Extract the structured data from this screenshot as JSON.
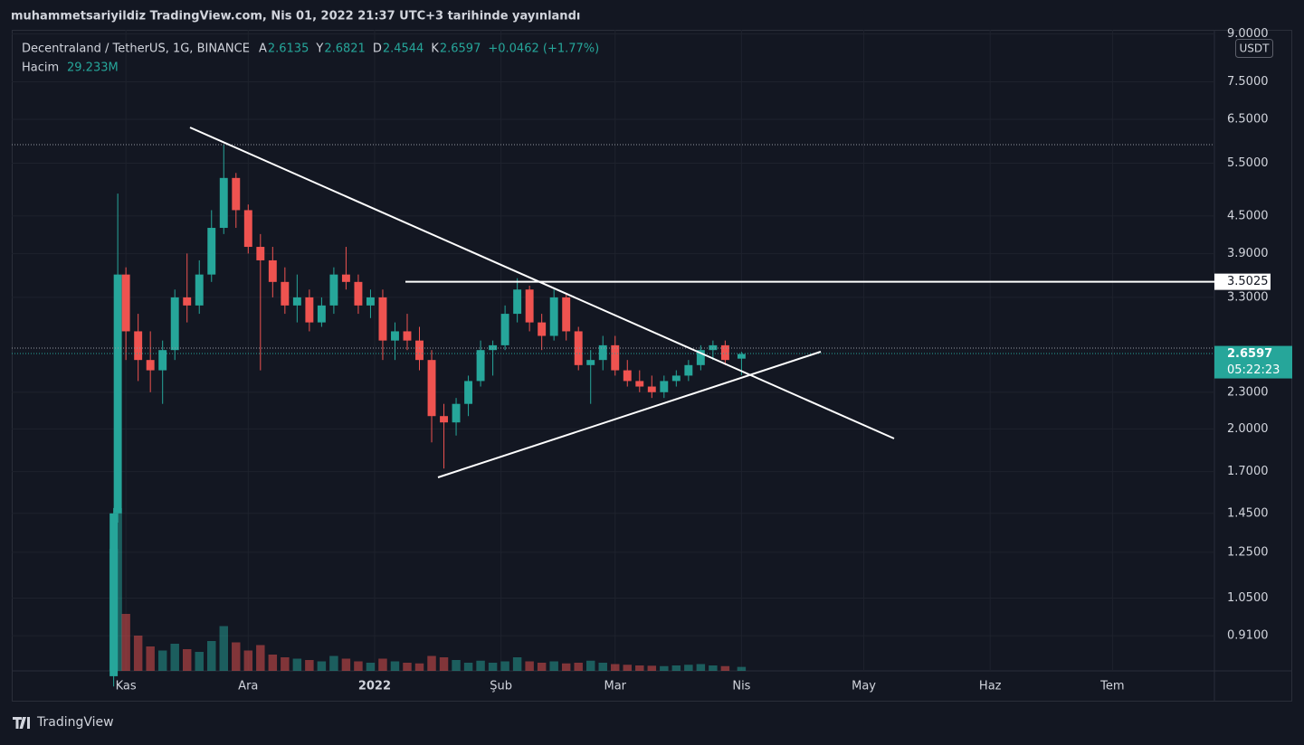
{
  "chart_data": {
    "type": "candlestick",
    "published": "muhammetsariyildiz TradingView.com, Nis 01, 2022 21:37 UTC+3 tarihinde yayınlandı",
    "title": "Decentraland / TetherUS, 1G, BINANCE",
    "readout": {
      "labels": [
        "A",
        "Y",
        "D",
        "K"
      ],
      "values": [
        2.6135,
        2.6821,
        2.4544,
        2.6597
      ],
      "change": "+0.0462 (+1.77%)"
    },
    "volume_readout": {
      "label": "Hacim",
      "value": 29.233,
      "value_label": "29.233M"
    },
    "currency": "USDT",
    "brand": "TradingView",
    "log_scale": true,
    "grid": true,
    "up_color": "#26a69a",
    "down_color": "#ef5350",
    "xlim": [
      -28,
      267
    ],
    "xticks": [
      {
        "value": 0,
        "label": "Kas"
      },
      {
        "value": 30,
        "label": "Ara"
      },
      {
        "value": 61,
        "label": "2022"
      },
      {
        "value": 92,
        "label": "Şub"
      },
      {
        "value": 120,
        "label": "Mar"
      },
      {
        "value": 151,
        "label": "Nis"
      },
      {
        "value": 181,
        "label": "May"
      },
      {
        "value": 212,
        "label": "Haz"
      },
      {
        "value": 242,
        "label": "Tem"
      }
    ],
    "ylim": [
      0.796,
      9.14
    ],
    "yticks": [
      {
        "value": 0.91,
        "label": "0.9100"
      },
      {
        "value": 1.05,
        "label": "1.0500"
      },
      {
        "value": 1.25,
        "label": "1.2500"
      },
      {
        "value": 1.45,
        "label": "1.4500"
      },
      {
        "value": 1.7,
        "label": "1.7000"
      },
      {
        "value": 2,
        "label": "2.0000"
      },
      {
        "value": 2.3,
        "label": "2.3000"
      },
      {
        "value": 3.3,
        "label": "3.3000"
      },
      {
        "value": 3.9,
        "label": "3.9000"
      },
      {
        "value": 4.5,
        "label": "4.5000"
      },
      {
        "value": 5.5,
        "label": "5.5000"
      },
      {
        "value": 6.5,
        "label": "6.5000"
      },
      {
        "value": 7.5,
        "label": "7.5000"
      },
      {
        "value": 9,
        "label": "9.0000"
      }
    ],
    "hline": 3.5025,
    "last_price": 2.6597,
    "countdown": "05:22:23",
    "volume_ylim": [
      0,
      1300
    ],
    "x": [
      -3,
      -2,
      0,
      3,
      6,
      9,
      12,
      15,
      18,
      21,
      24,
      27,
      30,
      33,
      36,
      39,
      42,
      45,
      48,
      51,
      54,
      57,
      60,
      63,
      66,
      69,
      72,
      75,
      78,
      81,
      84,
      87,
      90,
      93,
      96,
      99,
      102,
      105,
      108,
      111,
      114,
      117,
      120,
      123,
      126,
      129,
      132,
      135,
      138,
      141,
      144,
      147,
      151
    ],
    "ohlc": [
      [
        0.78,
        1.48,
        0.75,
        1.45
      ],
      [
        1.45,
        4.9,
        1.4,
        3.6
      ],
      [
        3.6,
        3.7,
        2.6,
        2.9
      ],
      [
        2.9,
        3.1,
        2.4,
        2.6
      ],
      [
        2.6,
        2.9,
        2.3,
        2.5
      ],
      [
        2.5,
        2.8,
        2.2,
        2.7
      ],
      [
        2.7,
        3.4,
        2.6,
        3.3
      ],
      [
        3.3,
        3.9,
        3.0,
        3.2
      ],
      [
        3.2,
        3.8,
        3.1,
        3.6
      ],
      [
        3.6,
        4.6,
        3.5,
        4.3
      ],
      [
        4.3,
        5.9,
        4.2,
        5.2
      ],
      [
        5.2,
        5.3,
        4.3,
        4.6
      ],
      [
        4.6,
        4.7,
        3.9,
        4.0
      ],
      [
        4.0,
        4.2,
        2.5,
        3.8
      ],
      [
        3.8,
        4.0,
        3.3,
        3.5
      ],
      [
        3.5,
        3.7,
        3.1,
        3.2
      ],
      [
        3.2,
        3.6,
        3.0,
        3.3
      ],
      [
        3.3,
        3.4,
        2.9,
        3.0
      ],
      [
        3.0,
        3.3,
        2.95,
        3.2
      ],
      [
        3.2,
        3.7,
        3.1,
        3.6
      ],
      [
        3.6,
        4.0,
        3.4,
        3.5
      ],
      [
        3.5,
        3.6,
        3.1,
        3.2
      ],
      [
        3.2,
        3.4,
        3.05,
        3.3
      ],
      [
        3.3,
        3.4,
        2.6,
        2.8
      ],
      [
        2.8,
        3.0,
        2.6,
        2.9
      ],
      [
        2.9,
        3.1,
        2.7,
        2.8
      ],
      [
        2.8,
        2.95,
        2.5,
        2.6
      ],
      [
        2.6,
        2.7,
        1.9,
        2.1
      ],
      [
        2.1,
        2.2,
        1.72,
        2.05
      ],
      [
        2.05,
        2.25,
        1.95,
        2.2
      ],
      [
        2.2,
        2.45,
        2.1,
        2.4
      ],
      [
        2.4,
        2.8,
        2.35,
        2.7
      ],
      [
        2.7,
        2.8,
        2.45,
        2.75
      ],
      [
        2.75,
        3.2,
        2.7,
        3.1
      ],
      [
        3.1,
        3.55,
        3.0,
        3.4
      ],
      [
        3.4,
        3.45,
        2.9,
        3.0
      ],
      [
        3.0,
        3.1,
        2.7,
        2.85
      ],
      [
        2.85,
        3.4,
        2.8,
        3.3
      ],
      [
        3.3,
        3.35,
        2.8,
        2.9
      ],
      [
        2.9,
        2.95,
        2.5,
        2.55
      ],
      [
        2.55,
        2.7,
        2.2,
        2.6
      ],
      [
        2.6,
        2.85,
        2.5,
        2.75
      ],
      [
        2.75,
        2.85,
        2.45,
        2.5
      ],
      [
        2.5,
        2.6,
        2.35,
        2.4
      ],
      [
        2.4,
        2.5,
        2.3,
        2.35
      ],
      [
        2.35,
        2.45,
        2.25,
        2.3
      ],
      [
        2.3,
        2.45,
        2.25,
        2.4
      ],
      [
        2.4,
        2.5,
        2.35,
        2.45
      ],
      [
        2.45,
        2.6,
        2.4,
        2.55
      ],
      [
        2.55,
        2.75,
        2.5,
        2.7
      ],
      [
        2.7,
        2.8,
        2.6,
        2.75
      ],
      [
        2.75,
        2.8,
        2.55,
        2.6
      ],
      [
        2.6135,
        2.6821,
        2.4544,
        2.6597
      ]
    ],
    "volume": [
      900,
      1200,
      420,
      260,
      180,
      150,
      200,
      160,
      140,
      220,
      330,
      210,
      150,
      190,
      120,
      100,
      90,
      80,
      70,
      110,
      90,
      70,
      60,
      90,
      70,
      60,
      55,
      110,
      100,
      80,
      60,
      75,
      60,
      70,
      100,
      70,
      60,
      70,
      55,
      60,
      75,
      60,
      50,
      45,
      40,
      38,
      35,
      40,
      45,
      50,
      40,
      35,
      29.233
    ]
  }
}
